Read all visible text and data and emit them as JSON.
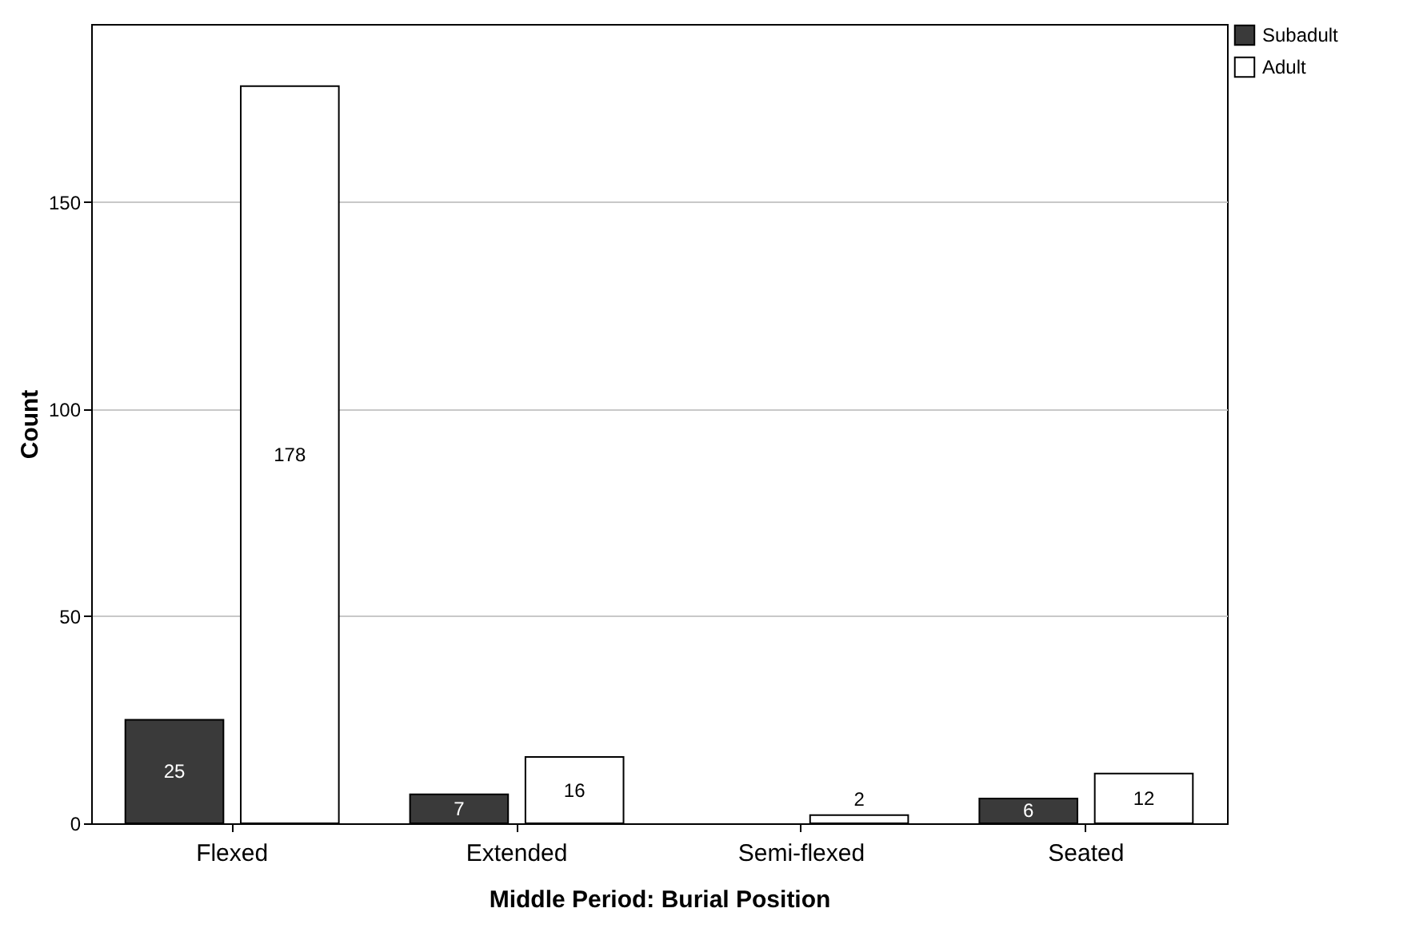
{
  "chart_data": {
    "type": "bar",
    "xlabel": "Middle Period: Burial Position",
    "ylabel": "Count",
    "categories": [
      "Flexed",
      "Extended",
      "Semi-flexed",
      "Seated"
    ],
    "series": [
      {
        "name": "Subadult",
        "color": "#3a3a3a",
        "values": [
          25,
          7,
          null,
          6
        ]
      },
      {
        "name": "Adult",
        "color": "#ffffff",
        "values": [
          178,
          16,
          2,
          12
        ]
      }
    ],
    "ylim": [
      0,
      193
    ],
    "yticks": [
      0,
      50,
      100,
      150
    ],
    "grid": "y",
    "legend": "top right",
    "data_labels": true
  }
}
